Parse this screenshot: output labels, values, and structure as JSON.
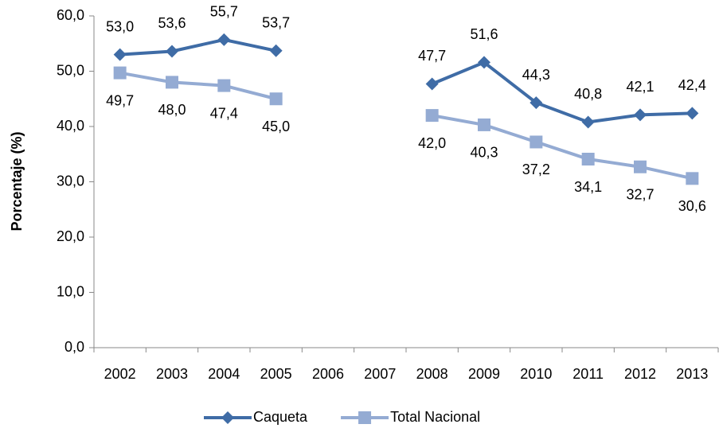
{
  "chart_data": {
    "type": "line",
    "y_label": "Porcentaje (%)",
    "categories": [
      "2002",
      "2003",
      "2004",
      "2005",
      "2006",
      "2007",
      "2008",
      "2009",
      "2010",
      "2011",
      "2012",
      "2013"
    ],
    "series": [
      {
        "name": "Caqueta",
        "color": "#3f6ca6",
        "marker": "diamond",
        "values": [
          53.0,
          53.6,
          55.7,
          53.7,
          null,
          null,
          47.7,
          51.6,
          44.3,
          40.8,
          42.1,
          42.4
        ],
        "value_labels": [
          "53,0",
          "53,6",
          "55,7",
          "53,7",
          null,
          null,
          "47,7",
          "51,6",
          "44,3",
          "40,8",
          "42,1",
          "42,4"
        ]
      },
      {
        "name": "Total Nacional",
        "color": "#94abd3",
        "marker": "square",
        "values": [
          49.7,
          48.0,
          47.4,
          45.0,
          null,
          null,
          42.0,
          40.3,
          37.2,
          34.1,
          32.7,
          30.6
        ],
        "value_labels": [
          "49,7",
          "48,0",
          "47,4",
          "45,0",
          null,
          null,
          "42,0",
          "40,3",
          "37,2",
          "34,1",
          "32,7",
          "30,6"
        ]
      }
    ],
    "ylim": [
      0,
      60
    ],
    "yticks": [
      {
        "value": 0,
        "label": "0,0"
      },
      {
        "value": 10,
        "label": "10,0"
      },
      {
        "value": 20,
        "label": "20,0"
      },
      {
        "value": 30,
        "label": "30,0"
      },
      {
        "value": 40,
        "label": "40,0"
      },
      {
        "value": 50,
        "label": "50,0"
      },
      {
        "value": 60,
        "label": "60,0"
      }
    ],
    "legend": "bottom"
  }
}
